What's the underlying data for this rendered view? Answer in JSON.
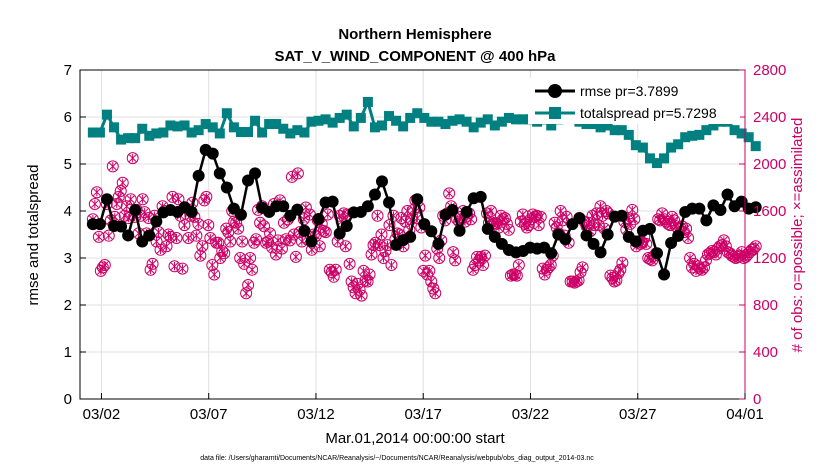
{
  "chart_data": {
    "type": "line",
    "title": "Northern Hemisphere",
    "subtitle": "SAT_V_WIND_COMPONENT @ 400 hPa",
    "xlabel": "Mar.01,2014 00:00:00 start",
    "ylabel_left": "rmse and totalspread",
    "ylabel_right": "# of obs: o=possible; ×=assimilated",
    "footnote": "data file: /Users/gharamti/Documents/NCAR/Reanalysis/~/Documents/NCAR/Reanalysis/webpub/obs_diag_output_2014-03.nc",
    "x_ticks": [
      {
        "day": 2,
        "label": "03/02"
      },
      {
        "day": 7,
        "label": "03/07"
      },
      {
        "day": 12,
        "label": "03/12"
      },
      {
        "day": 17,
        "label": "03/17"
      },
      {
        "day": 22,
        "label": "03/22"
      },
      {
        "day": 27,
        "label": "03/27"
      },
      {
        "day": 32,
        "label": "04/01"
      }
    ],
    "xlim": [
      1,
      32
    ],
    "ylim_left": [
      0,
      7
    ],
    "yticks_left": [
      "0",
      "1",
      "2",
      "3",
      "4",
      "5",
      "6",
      "7"
    ],
    "ylim_right": [
      0,
      2800
    ],
    "yticks_right": [
      "0",
      "400",
      "800",
      "1200",
      "1600",
      "2000",
      "2400",
      "2800"
    ],
    "grid": true,
    "legend_position": "top-right",
    "colors": {
      "rmse": "#000000",
      "totalspread": "#008080",
      "obs": "#cc0066",
      "grid": "#e0e0e0"
    },
    "series": [
      {
        "name": "rmse pr=3.7899",
        "axis": "left",
        "values": [
          3.72,
          3.72,
          4.25,
          3.68,
          3.67,
          3.48,
          4.02,
          3.35,
          3.48,
          3.78,
          3.97,
          4.02,
          3.98,
          4.08,
          3.98,
          4.75,
          5.3,
          5.22,
          4.8,
          4.5,
          4.05,
          3.92,
          4.65,
          4.8,
          4.07,
          3.98,
          4.1,
          4.1,
          3.9,
          4.03,
          3.58,
          3.35,
          3.83,
          4.18,
          4.2,
          3.52,
          3.68,
          3.97,
          3.98,
          4.1,
          4.35,
          4.63,
          4.18,
          3.28,
          3.38,
          3.45,
          4.25,
          3.72,
          3.57,
          3.3,
          3.92,
          4.02,
          3.58,
          3.98,
          4.27,
          4.3,
          3.62,
          3.45,
          3.3,
          3.17,
          3.12,
          3.15,
          3.22,
          3.2,
          3.22,
          3.1,
          3.5,
          3.4,
          3.72,
          3.85,
          3.48,
          3.3,
          3.12,
          3.5,
          3.88,
          3.9,
          3.45,
          3.35,
          3.58,
          3.62,
          3.1,
          2.65,
          3.32,
          3.47,
          3.98,
          4.05,
          4.05,
          3.8,
          4.12,
          4.02,
          4.35,
          4.1,
          4.2,
          4.05,
          4.08
        ]
      },
      {
        "name": "totalspread pr=5.7298",
        "axis": "left",
        "values": [
          5.67,
          5.67,
          6.05,
          5.78,
          5.52,
          5.55,
          5.55,
          5.75,
          5.6,
          5.65,
          5.67,
          5.82,
          5.8,
          5.82,
          5.67,
          5.72,
          5.85,
          5.78,
          5.65,
          6.08,
          5.78,
          5.68,
          5.68,
          5.92,
          5.67,
          5.85,
          5.85,
          5.75,
          5.65,
          5.72,
          5.67,
          5.9,
          5.92,
          5.95,
          5.88,
          5.98,
          6.05,
          5.8,
          5.98,
          6.32,
          5.78,
          5.82,
          6.02,
          5.92,
          5.8,
          5.98,
          6.08,
          5.98,
          5.9,
          5.9,
          5.85,
          5.92,
          5.95,
          5.9,
          5.78,
          5.88,
          5.95,
          5.82,
          5.9,
          5.98,
          5.95,
          5.95,
          5.95,
          5.9,
          5.95,
          5.82,
          5.95,
          6.1,
          5.98,
          5.9,
          5.85,
          5.85,
          5.78,
          5.82,
          5.72,
          5.72,
          5.62,
          5.4,
          5.35,
          5.12,
          5.02,
          5.12,
          5.35,
          5.42,
          5.57,
          5.6,
          5.62,
          5.72,
          5.82,
          5.9,
          5.9,
          5.72,
          5.65,
          5.57,
          5.38
        ]
      },
      {
        "name": "# of obs possible",
        "axis": "right",
        "values": [
          1530,
          1660,
          1760,
          1380,
          1090,
          1120,
          1140,
          1660,
          1390,
          1520,
          1980,
          1550,
          1660,
          1720,
          1770,
          1840,
          1560,
          1640,
          1540,
          1700,
          2050,
          1550,
          1610,
          1410,
          1560,
          1700,
          1590,
          1410,
          1540,
          1100,
          1150,
          1560,
          1340,
          1420,
          1270,
          1640,
          1600,
          1300,
          1400,
          1380,
          1720,
          1130,
          1370,
          1700,
          1560,
          1110,
          1480,
          1620,
          1370,
          1560,
          1670,
          1550,
          1390,
          1490,
          1220,
          1300,
          1690,
          1720,
          1480,
          1370,
          1140,
          1060,
          1330,
          1330,
          1200,
          1260,
          1240,
          1450,
          1420,
          1340,
          1600,
          1510,
          1500,
          1450,
          1200,
          1340,
          1150,
          900,
          970,
          1200,
          1100,
          1330,
          1360,
          1610,
          1500,
          1640,
          1470,
          1330,
          1340,
          1410,
          1290,
          1660,
          1230,
          1350,
          1690,
          1280,
          1500,
          1360,
          1530,
          1350,
          1890,
          1400,
          1210,
          1920,
          1420,
          1340,
          1530,
          1630,
          1360,
          1570,
          1270,
          1400,
          1390,
          1520,
          1300,
          1490,
          1430,
          1420,
          1570,
          1100,
          1080,
          1040,
          1100,
          1340,
          1560,
          1510,
          1580,
          1300,
          1570,
          1150,
          1000,
          950,
          900,
          980,
          930,
          880,
          1090,
          1010,
          1000,
          1060,
          1230,
          1310,
          1330,
          1560,
          1310,
          1400,
          1200,
          1260,
          1310,
          1480,
          1140,
          1560,
          1360,
          1410,
          1400,
          1540,
          1300,
          1510,
          1600,
          1440,
          1530,
          1610,
          1690,
          1540,
          1630,
          1460,
          1090,
          1220,
          1060,
          1090,
          1000,
          940,
          900,
          1280,
          1200,
          1350,
          1560,
          1520,
          1580,
          1750,
          1640,
          1250,
          1180,
          1530,
          1510,
          1550,
          1600,
          1510,
          1560,
          1580,
          1530,
          1100,
          1140,
          1210,
          1180,
          1210,
          1140,
          1220,
          1580,
          1500,
          1600,
          1490,
          1500,
          1490,
          1460,
          1560,
          1530,
          1540,
          1490,
          1440,
          1050,
          1060,
          1060,
          1050,
          1140,
          1510,
          1570,
          1490,
          1460,
          1480,
          1530,
          1570,
          1550,
          1560,
          1480,
          1550,
          1110,
          1060,
          1100,
          1120,
          1140,
          1220,
          1500,
          1460,
          1410,
          1600,
          1520,
          1390,
          1550,
          1330,
          1000,
          1000,
          990,
          1000,
          1010,
          1080,
          1120,
          1510,
          1470,
          1500,
          1430,
          1560,
          1480,
          1580,
          1480,
          1640,
          1560,
          1450,
          1600,
          1580,
          1050,
          1030,
          1000,
          1010,
          1070,
          1100,
          1160,
          1510,
          1440,
          1540,
          1490,
          1610,
          1530,
          1300,
          1340,
          1320,
          1330,
          1380,
          1320,
          1200,
          1190,
          1180,
          1220,
          1240,
          1530,
          1520,
          1580,
          1530,
          1510,
          1490,
          1480,
          1550,
          1520,
          1470,
          1450,
          1460,
          1470,
          1420,
          1450,
          1370,
          1200,
          1120,
          1150,
          1090,
          1130,
          1110,
          1100,
          1120,
          1180,
          1230,
          1240,
          1260,
          1250,
          1230,
          1280,
          1300,
          1310,
          1350,
          1300,
          1250,
          1240,
          1220,
          1210,
          1200,
          1210,
          1220,
          1250,
          1200,
          1210,
          1230,
          1250,
          1270,
          1280,
          1300
        ]
      },
      {
        "name": "# of obs assimilated",
        "axis": "right",
        "values": [
          1530,
          1660,
          1760,
          1380,
          1090,
          1120,
          1140,
          1660,
          1390,
          1520,
          1980,
          1550,
          1660,
          1720,
          1770,
          1840,
          1560,
          1640,
          1540,
          1700,
          2050,
          1550,
          1610,
          1410,
          1560,
          1700,
          1590,
          1410,
          1540,
          1100,
          1150,
          1560,
          1340,
          1420,
          1270,
          1640,
          1600,
          1300,
          1400,
          1380,
          1720,
          1130,
          1370,
          1700,
          1560,
          1110,
          1480,
          1620,
          1370,
          1560,
          1670,
          1550,
          1390,
          1490,
          1220,
          1300,
          1690,
          1720,
          1480,
          1370,
          1140,
          1060,
          1330,
          1330,
          1200,
          1260,
          1240,
          1450,
          1420,
          1340,
          1600,
          1510,
          1500,
          1450,
          1200,
          1340,
          1150,
          900,
          970,
          1200,
          1100,
          1330,
          1360,
          1610,
          1500,
          1640,
          1470,
          1330,
          1340,
          1410,
          1290,
          1660,
          1230,
          1350,
          1690,
          1280,
          1500,
          1360,
          1530,
          1350,
          1890,
          1400,
          1210,
          1920,
          1420,
          1340,
          1530,
          1630,
          1360,
          1570,
          1270,
          1400,
          1390,
          1520,
          1300,
          1490,
          1430,
          1420,
          1570,
          1100,
          1080,
          1040,
          1100,
          1340,
          1560,
          1510,
          1580,
          1300,
          1570,
          1150,
          1000,
          950,
          900,
          980,
          930,
          880,
          1090,
          1010,
          1000,
          1060,
          1230,
          1310,
          1330,
          1560,
          1310,
          1400,
          1200,
          1260,
          1310,
          1480,
          1140,
          1560,
          1360,
          1410,
          1400,
          1540,
          1300,
          1510,
          1600,
          1440,
          1530,
          1610,
          1690,
          1540,
          1630,
          1460,
          1090,
          1220,
          1060,
          1090,
          1000,
          940,
          900,
          1280,
          1200,
          1350,
          1560,
          1520,
          1580,
          1750,
          1640,
          1250,
          1180,
          1530,
          1510,
          1550,
          1600,
          1510,
          1560,
          1580,
          1530,
          1100,
          1140,
          1210,
          1180,
          1210,
          1140,
          1220,
          1580,
          1500,
          1600,
          1490,
          1500,
          1490,
          1460,
          1560,
          1530,
          1540,
          1490,
          1440,
          1050,
          1060,
          1060,
          1050,
          1140,
          1510,
          1570,
          1490,
          1460,
          1480,
          1530,
          1570,
          1550,
          1560,
          1480,
          1550,
          1110,
          1060,
          1100,
          1120,
          1140,
          1220,
          1500,
          1460,
          1410,
          1600,
          1520,
          1390,
          1550,
          1330,
          1000,
          1000,
          990,
          1000,
          1010,
          1080,
          1120,
          1510,
          1470,
          1500,
          1430,
          1560,
          1480,
          1580,
          1480,
          1640,
          1560,
          1450,
          1600,
          1580,
          1050,
          1030,
          1000,
          1010,
          1070,
          1100,
          1160,
          1510,
          1440,
          1540,
          1490,
          1610,
          1530,
          1300,
          1340,
          1320,
          1330,
          1380,
          1320,
          1200,
          1190,
          1180,
          1220,
          1240,
          1530,
          1520,
          1580,
          1530,
          1510,
          1490,
          1480,
          1550,
          1520,
          1470,
          1450,
          1460,
          1470,
          1420,
          1450,
          1370,
          1200,
          1120,
          1150,
          1090,
          1130,
          1110,
          1100,
          1120,
          1180,
          1230,
          1240,
          1260,
          1250,
          1230,
          1280,
          1300,
          1310,
          1350,
          1300,
          1250,
          1240,
          1220,
          1210,
          1200,
          1210,
          1220,
          1250,
          1200,
          1210,
          1230,
          1250,
          1270,
          1280,
          1300
        ]
      }
    ]
  }
}
